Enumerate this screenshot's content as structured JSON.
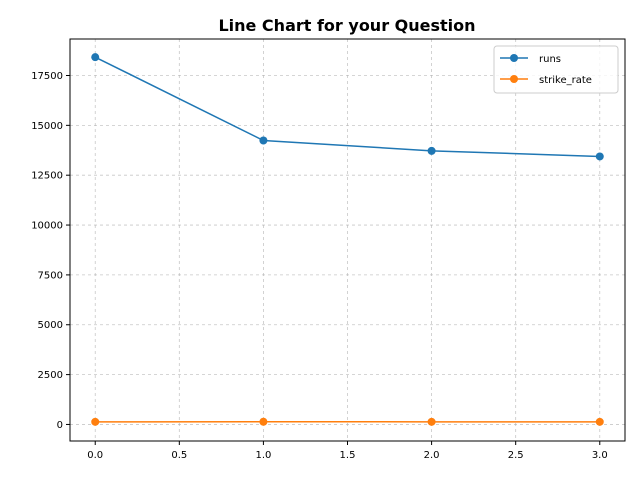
{
  "chart_data": {
    "type": "line",
    "title": "Line Chart for your Question",
    "xlabel": "",
    "ylabel": "",
    "x": [
      0,
      1,
      2,
      3
    ],
    "series": [
      {
        "name": "runs",
        "values": [
          18420,
          14240,
          13720,
          13440
        ],
        "color": "#1f77b4"
      },
      {
        "name": "strike_rate",
        "values": [
          130,
          135,
          132,
          131
        ],
        "color": "#ff7f0e"
      }
    ],
    "xlim": [
      -0.15,
      3.15
    ],
    "ylim": [
      -830,
      19330
    ],
    "x_ticks": [
      0.0,
      0.5,
      1.0,
      1.5,
      2.0,
      2.5,
      3.0
    ],
    "x_tick_labels": [
      "0.0",
      "0.5",
      "1.0",
      "1.5",
      "2.0",
      "2.5",
      "3.0"
    ],
    "y_ticks": [
      0,
      2500,
      5000,
      7500,
      10000,
      12500,
      15000,
      17500
    ],
    "y_tick_labels": [
      "0",
      "2500",
      "5000",
      "7500",
      "10000",
      "12500",
      "15000",
      "17500"
    ],
    "grid": true,
    "legend_position": "top-right",
    "marker": "circle"
  }
}
